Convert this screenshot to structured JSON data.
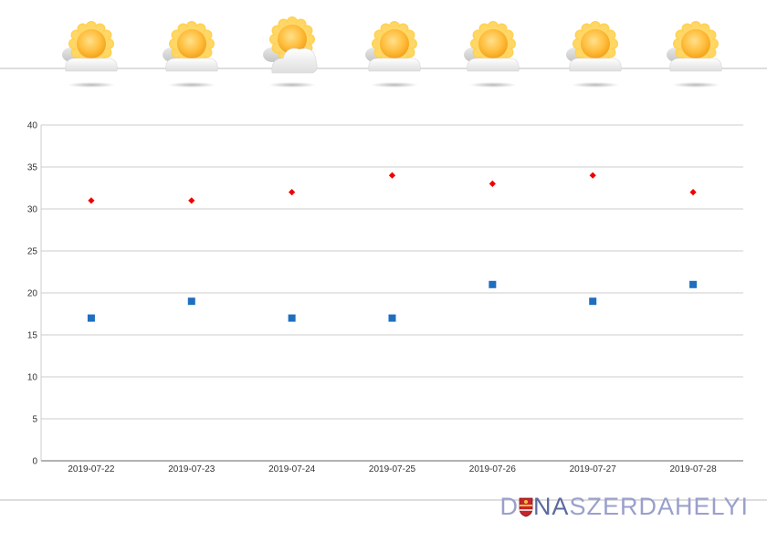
{
  "icons": [
    {
      "kind": "sun-behind-cloud-icon"
    },
    {
      "kind": "sun-behind-cloud-icon"
    },
    {
      "kind": "sun-behind-large-cloud-icon"
    },
    {
      "kind": "sun-behind-cloud-icon"
    },
    {
      "kind": "sun-behind-cloud-icon"
    },
    {
      "kind": "sun-behind-cloud-icon"
    },
    {
      "kind": "sun-behind-cloud-icon"
    }
  ],
  "chart_data": {
    "type": "scatter",
    "categories": [
      "2019-07-22",
      "2019-07-23",
      "2019-07-24",
      "2019-07-25",
      "2019-07-26",
      "2019-07-27",
      "2019-07-28"
    ],
    "series": [
      {
        "values": [
          31,
          31,
          32,
          34,
          33,
          34,
          32
        ],
        "color": "#ee0000",
        "marker": "diamond"
      },
      {
        "values": [
          17,
          19,
          17,
          17,
          21,
          19,
          21
        ],
        "color": "#1f6fbf",
        "marker": "square"
      }
    ],
    "ylim": [
      0,
      40
    ],
    "yticks": [
      0,
      5,
      10,
      15,
      20,
      25,
      30,
      35,
      40
    ],
    "grid": true,
    "title": "",
    "xlabel": "",
    "ylabel": ""
  },
  "brand": {
    "prefix": "D",
    "mid": "NA",
    "suffix": "SZERDAHELYI"
  },
  "colors": {
    "grid": "#cccccc",
    "axis": "#666666",
    "divider": "#bbbbbb"
  }
}
